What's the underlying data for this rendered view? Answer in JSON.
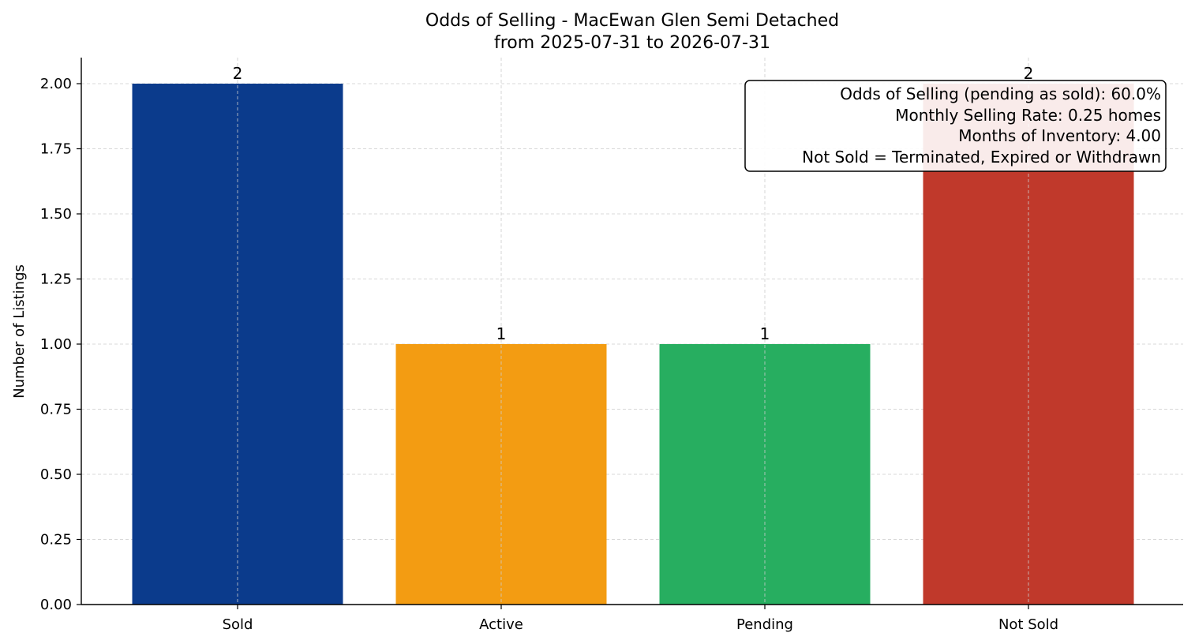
{
  "chart_data": {
    "type": "bar",
    "title": "Odds of Selling - MacEwan Glen Semi Detached",
    "subtitle": "from 2025-07-31 to 2026-07-31",
    "xlabel": "",
    "ylabel": "Number of Listings",
    "categories": [
      "Sold",
      "Active",
      "Pending",
      "Not Sold"
    ],
    "values": [
      2,
      1,
      1,
      2
    ],
    "data_labels": [
      "2",
      "1",
      "1",
      "2"
    ],
    "colors": [
      "#0b3b8c",
      "#f39c12",
      "#27ae60",
      "#c0392b"
    ],
    "ylim": [
      0,
      2.1
    ],
    "yticks": [
      0,
      0.25,
      0.5,
      0.75,
      1.0,
      1.25,
      1.5,
      1.75,
      2.0
    ],
    "ytick_labels": [
      "0.00",
      "0.25",
      "0.50",
      "0.75",
      "1.00",
      "1.25",
      "1.50",
      "1.75",
      "2.00"
    ],
    "grid": true,
    "annotation": {
      "placement": "top-right",
      "lines": [
        "Odds of Selling (pending as sold): 60.0%",
        "Monthly Selling Rate: 0.25 homes",
        "Months of Inventory: 4.00",
        "Not Sold = Terminated, Expired or Withdrawn"
      ]
    }
  }
}
